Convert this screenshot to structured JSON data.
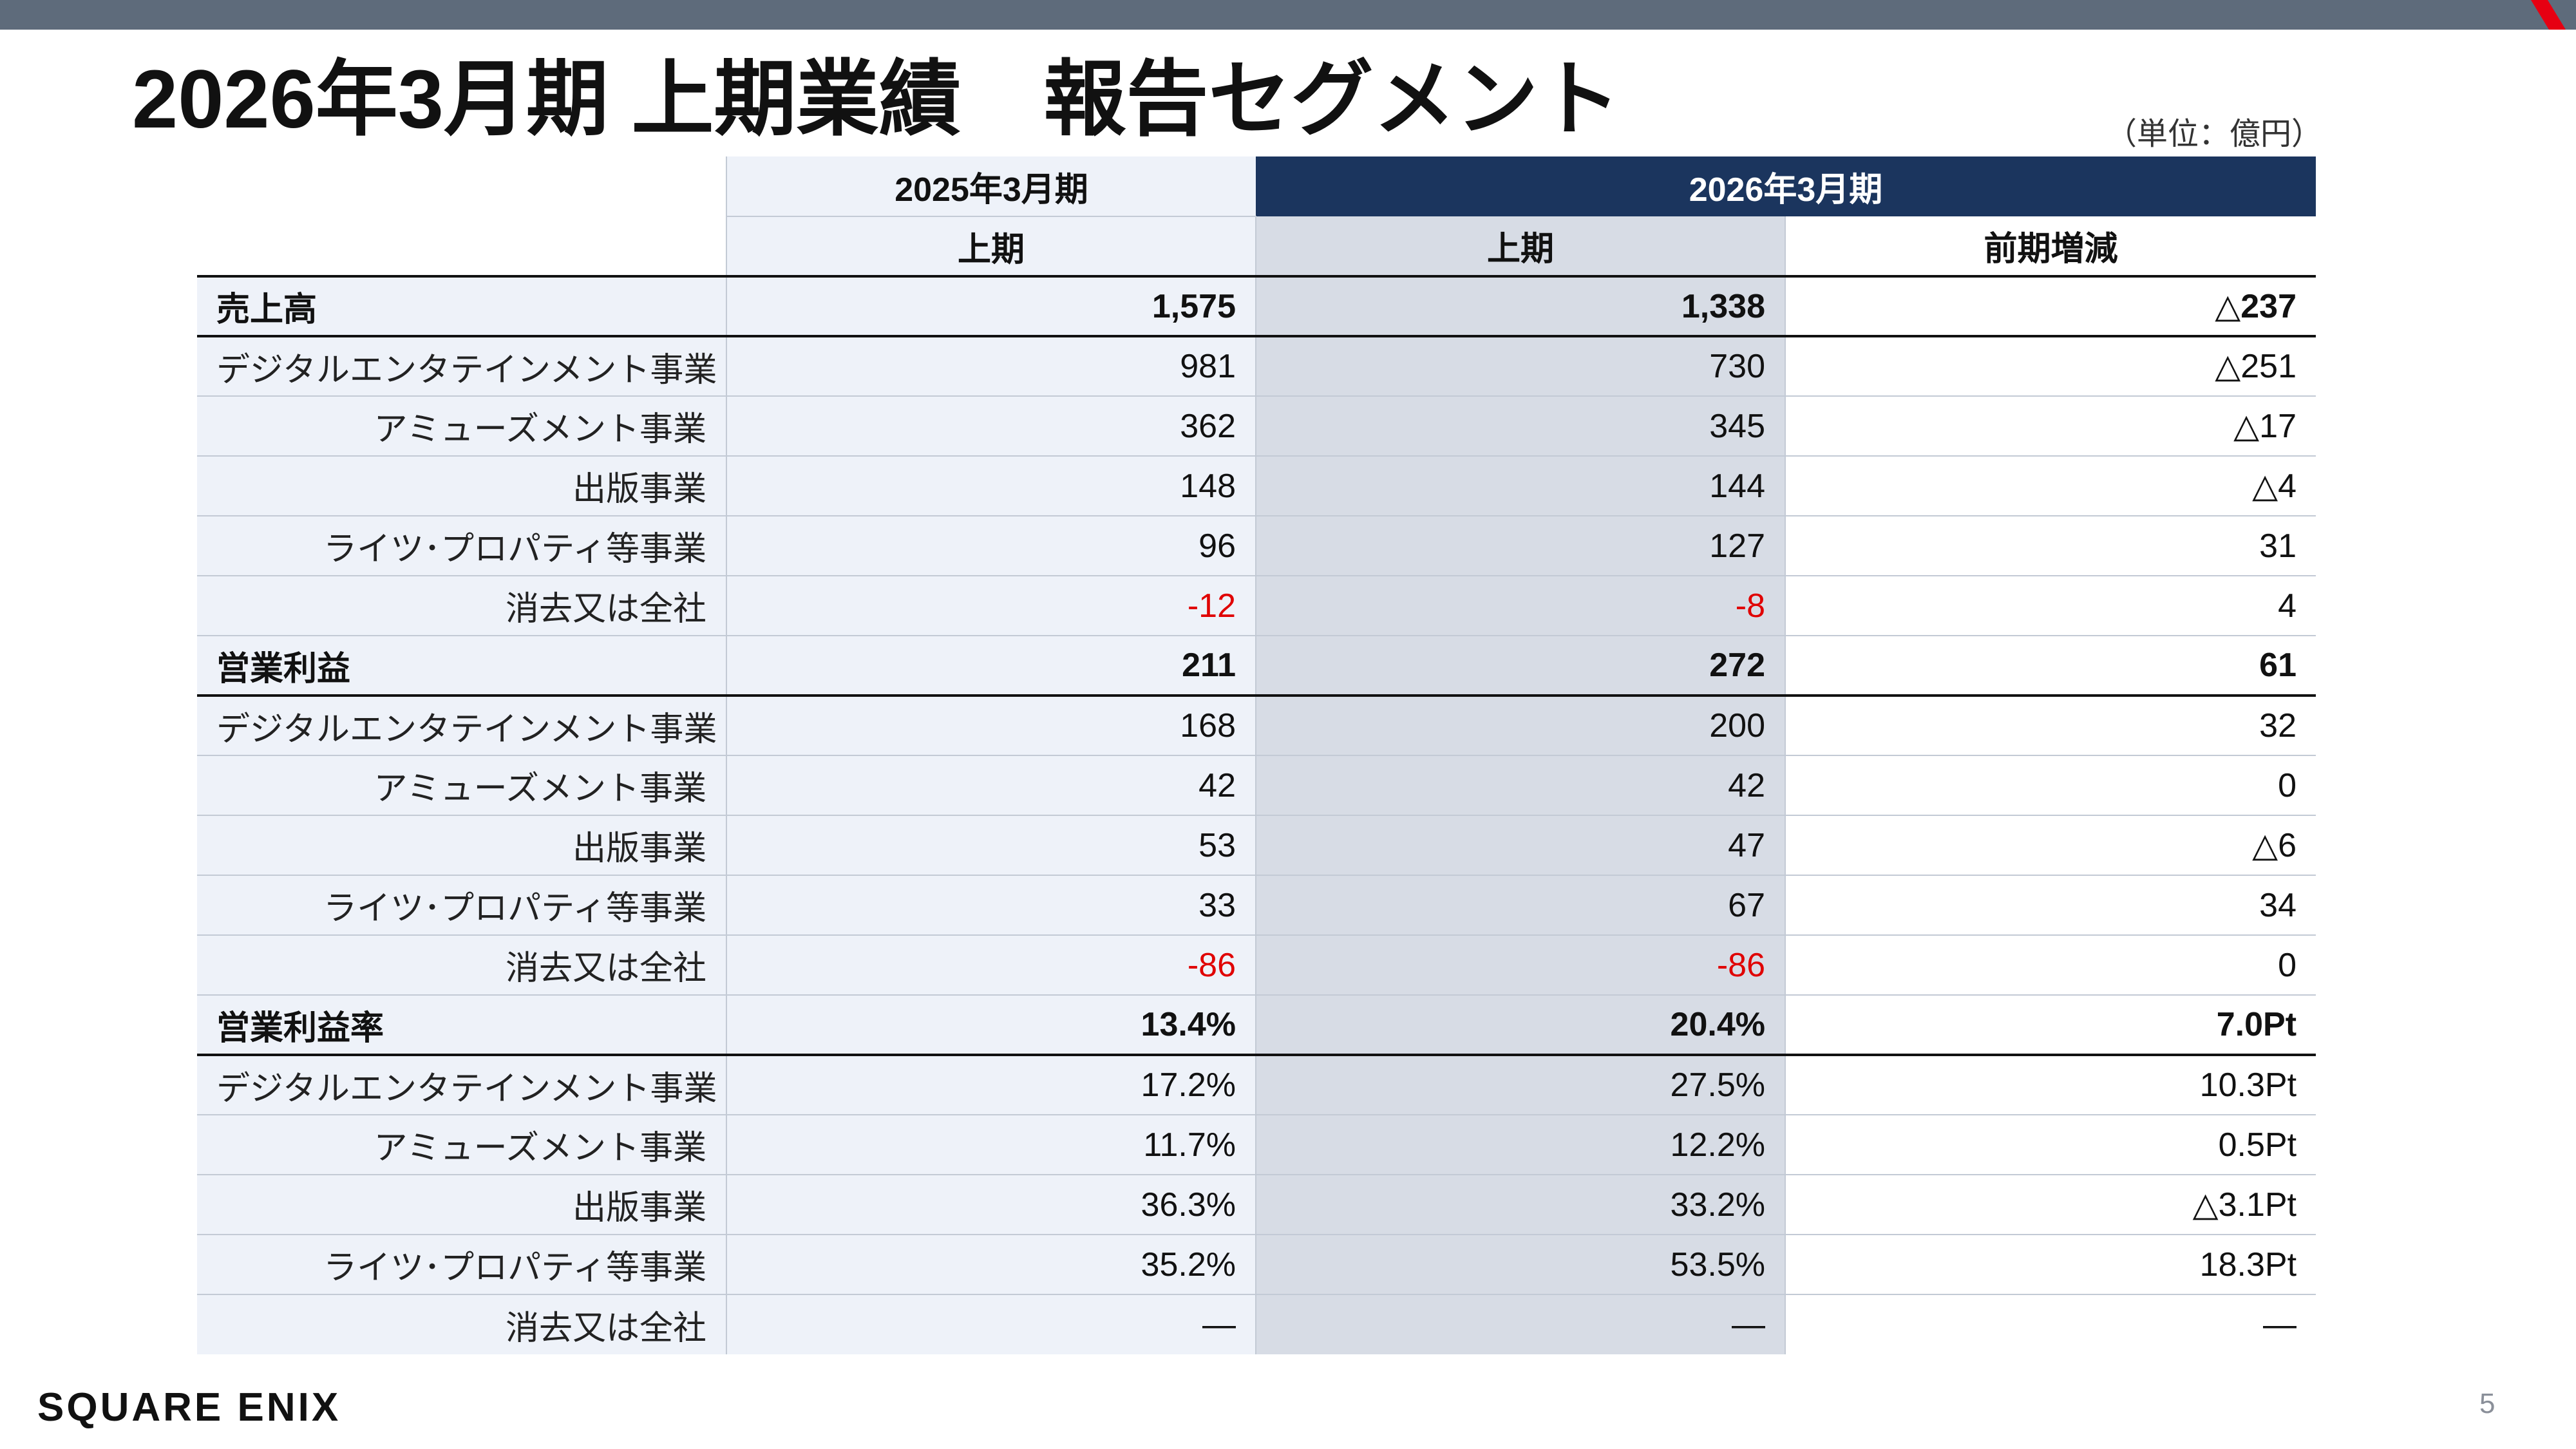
{
  "title": "2026年3月期 上期業績　報告セグメント",
  "unit": "（単位：億円）",
  "header": {
    "prev_period": "2025年3月期",
    "cur_period": "2026年3月期",
    "prev_sub": "上期",
    "cur_sub": "上期",
    "diff": "前期増減"
  },
  "rows": [
    {
      "label": "売上高",
      "prev": "1,575",
      "cur": "1,338",
      "diff": "△237",
      "main": true
    },
    {
      "label": "デジタルエンタテインメント事業",
      "prev": "981",
      "cur": "730",
      "diff": "△251"
    },
    {
      "label": "アミューズメント事業",
      "prev": "362",
      "cur": "345",
      "diff": "△17"
    },
    {
      "label": "出版事業",
      "prev": "148",
      "cur": "144",
      "diff": "△4"
    },
    {
      "label": "ライツ･プロパティ等事業",
      "prev": "96",
      "cur": "127",
      "diff": "31"
    },
    {
      "label": "消去又は全社",
      "prev": "-12",
      "cur": "-8",
      "diff": "4",
      "neg": true
    },
    {
      "label": "営業利益",
      "prev": "211",
      "cur": "272",
      "diff": "61",
      "main": true
    },
    {
      "label": "デジタルエンタテインメント事業",
      "prev": "168",
      "cur": "200",
      "diff": "32"
    },
    {
      "label": "アミューズメント事業",
      "prev": "42",
      "cur": "42",
      "diff": "0"
    },
    {
      "label": "出版事業",
      "prev": "53",
      "cur": "47",
      "diff": "△6"
    },
    {
      "label": "ライツ･プロパティ等事業",
      "prev": "33",
      "cur": "67",
      "diff": "34"
    },
    {
      "label": "消去又は全社",
      "prev": "-86",
      "cur": "-86",
      "diff": "0",
      "neg": true
    },
    {
      "label": "営業利益率",
      "prev": "13.4%",
      "cur": "20.4%",
      "diff": "7.0Pt",
      "main": true
    },
    {
      "label": "デジタルエンタテインメント事業",
      "prev": "17.2%",
      "cur": "27.5%",
      "diff": "10.3Pt"
    },
    {
      "label": "アミューズメント事業",
      "prev": "11.7%",
      "cur": "12.2%",
      "diff": "0.5Pt"
    },
    {
      "label": "出版事業",
      "prev": "36.3%",
      "cur": "33.2%",
      "diff": "△3.1Pt"
    },
    {
      "label": "ライツ･プロパティ等事業",
      "prev": "35.2%",
      "cur": "53.5%",
      "diff": "18.3Pt"
    },
    {
      "label": "消去又は全社",
      "prev": "―",
      "cur": "―",
      "diff": "―"
    }
  ],
  "logo": "SQUARE ENIX",
  "page_number": "5",
  "colors": {
    "top_bar": "#5e6b7b",
    "accent_red": "#e60012",
    "header_navy": "#1b355e",
    "current_column": "#d7dce5",
    "row_tint": "#eef2f9",
    "negative": "#e00000"
  }
}
